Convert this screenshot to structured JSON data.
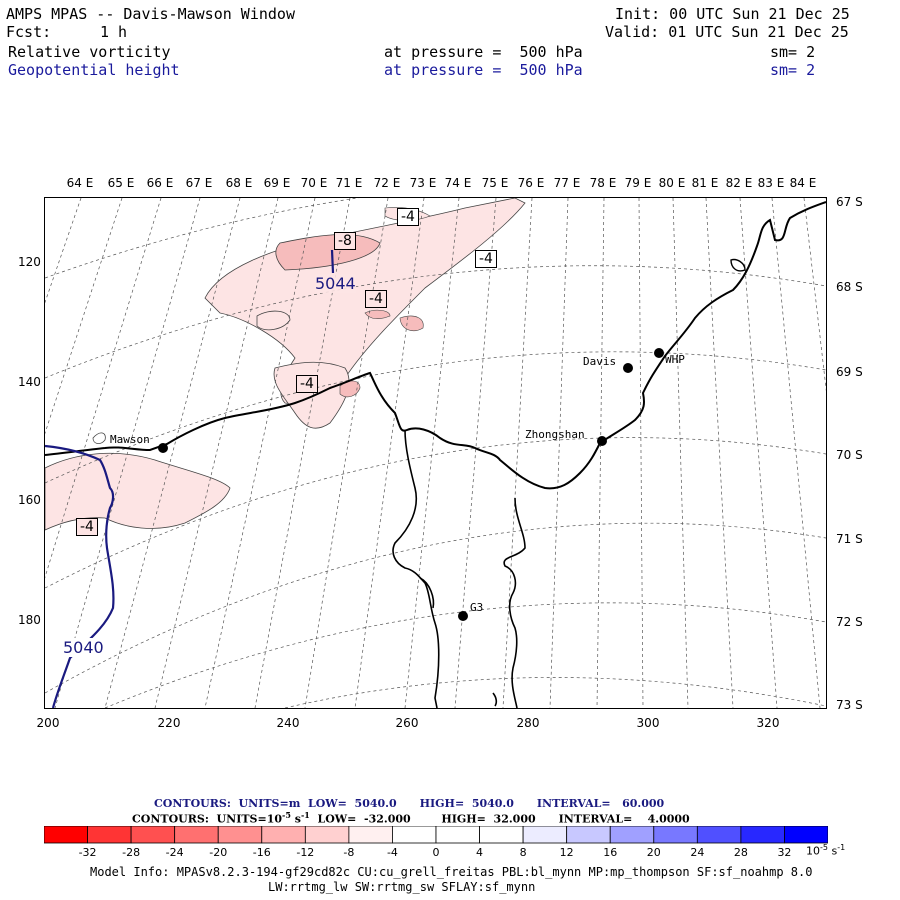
{
  "header": {
    "title": "AMPS MPAS -- Davis-Mawson Window",
    "init": "Init: 00 UTC Sun 21 Dec 25",
    "fcst_label": "Fcst:",
    "fcst_value": "1 h",
    "valid": "Valid: 01 UTC Sun 21 Dec 25",
    "field1_name": "Relative vorticity",
    "field1_level": "at pressure =  500 hPa",
    "field1_sm": "sm= 2",
    "field2_name": "Geopotential height",
    "field2_level": "at pressure =  500 hPa",
    "field2_sm": "sm= 2"
  },
  "map": {
    "lon_labels": [
      "64 E",
      "65 E",
      "66 E",
      "67 E",
      "68 E",
      "69 E",
      "70 E",
      "71 E",
      "72 E",
      "73 E",
      "74 E",
      "75 E",
      "76 E",
      "77 E",
      "78 E",
      "79 E",
      "80 E",
      "81 E",
      "82 E",
      "83 E",
      "84 E"
    ],
    "lat_labels": [
      "67 S",
      "68 S",
      "69 S",
      "70 S",
      "71 S",
      "72 S",
      "73 S"
    ],
    "y_ticks": [
      "120",
      "140",
      "160",
      "180"
    ],
    "x_ticks": [
      "200",
      "220",
      "240",
      "260",
      "280",
      "300",
      "320"
    ],
    "stations": [
      {
        "name": "Mawson"
      },
      {
        "name": "Davis"
      },
      {
        "name": "WHP"
      },
      {
        "name": "Zhongshan"
      },
      {
        "name": "G3"
      }
    ],
    "vorticity_labels": [
      "-4",
      "-8",
      "-4",
      "-4",
      "-4",
      "-4"
    ],
    "height_labels": [
      "5044",
      "5040"
    ],
    "colors": {
      "height_contour": "#1a1a80",
      "vort_light": "#fde2e2",
      "vort_mid": "#f9c4c4",
      "coast": "#000000"
    }
  },
  "contour_info": {
    "line1": "CONTOURS:  UNITS=m  LOW=  5040.0      HIGH=  5040.0      INTERVAL=   60.000",
    "line2_units": "CONTOURS:  UNITS=10",
    "line2_exp": "-5",
    "line2_s": " s",
    "line2_sexp": "-1",
    "line2_rest": "  LOW=  -32.000        HIGH=  32.000      INTERVAL=    4.0000"
  },
  "colorbar": {
    "labels": [
      "-32",
      "-28",
      "-24",
      "-20",
      "-16",
      "-12",
      "-8",
      "-4",
      "0",
      "4",
      "8",
      "12",
      "16",
      "20",
      "24",
      "28",
      "32"
    ],
    "units": "10",
    "units_exp": "-5",
    "units_s": " s",
    "units_sexp": "-1",
    "colors": [
      "#ff0000",
      "#ff3434",
      "#ff5050",
      "#ff7070",
      "#ff9090",
      "#ffb0b0",
      "#ffd0d0",
      "#fff0f0",
      "#ffffff",
      "#ffffff",
      "#ececff",
      "#c8c8ff",
      "#a0a0ff",
      "#7878ff",
      "#5050ff",
      "#2828ff",
      "#0000ff"
    ]
  },
  "model_info": {
    "line1": "Model Info: MPASv8.2.3-194-gf29cd82c CU:cu_grell_freitas PBL:bl_mynn MP:mp_thompson SF:sf_noahmp 8.0",
    "line2": "LW:rrtmg_lw SW:rrtmg_sw SFLAY:sf_mynn"
  }
}
